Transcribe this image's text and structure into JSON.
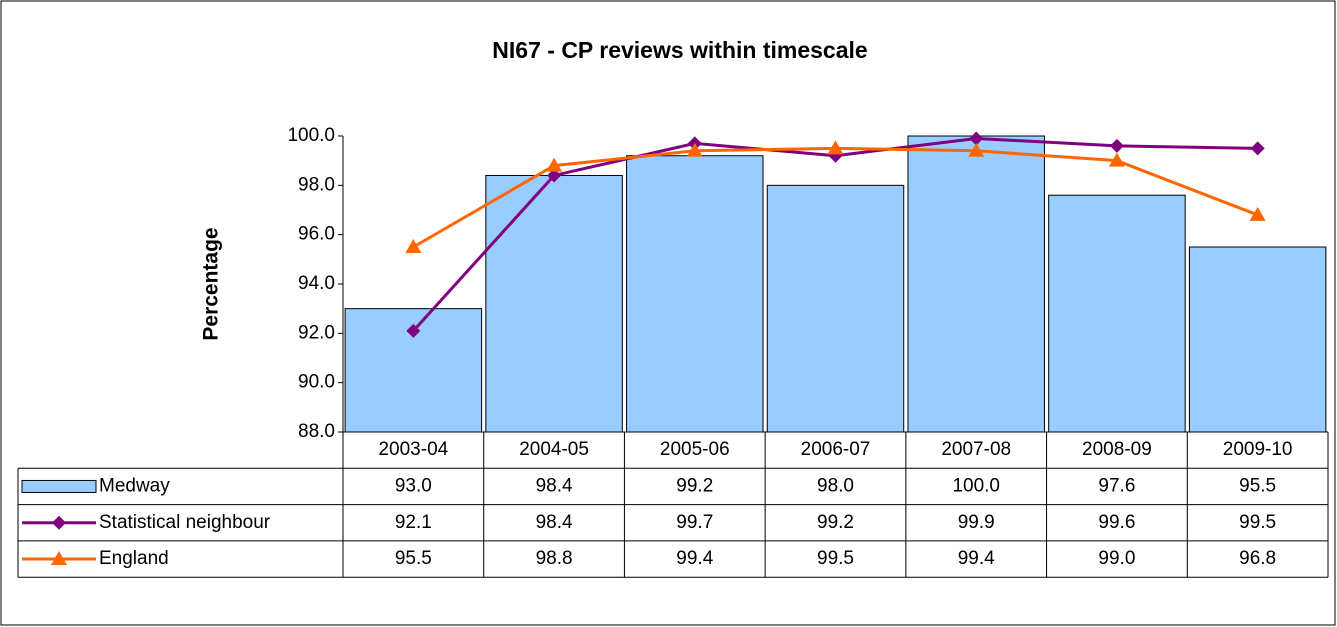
{
  "chart_data": {
    "type": "bar",
    "title": "NI67 - CP reviews within timescale",
    "y_label": "Percentage",
    "categories": [
      "2003-04",
      "2004-05",
      "2005-06",
      "2006-07",
      "2007-08",
      "2008-09",
      "2009-10"
    ],
    "series": [
      {
        "name": "Medway",
        "type": "bar",
        "color": "#99ccff",
        "values": [
          93.0,
          98.4,
          99.2,
          98.0,
          100.0,
          97.6,
          95.5
        ],
        "value_labels": [
          "93.0",
          "98.4",
          "99.2",
          "98.0",
          "100.0",
          "97.6",
          "95.5"
        ]
      },
      {
        "name": "Statistical neighbour",
        "type": "line",
        "marker": "diamond",
        "color": "#800080",
        "values": [
          92.1,
          98.4,
          99.7,
          99.2,
          99.9,
          99.6,
          99.5
        ],
        "value_labels": [
          "92.1",
          "98.4",
          "99.7",
          "99.2",
          "99.9",
          "99.6",
          "99.5"
        ]
      },
      {
        "name": "England",
        "type": "line",
        "marker": "triangle",
        "color": "#ff6600",
        "values": [
          95.5,
          98.8,
          99.4,
          99.5,
          99.4,
          99.0,
          96.8
        ],
        "value_labels": [
          "95.5",
          "98.8",
          "99.4",
          "99.5",
          "99.4",
          "99.0",
          "96.8"
        ]
      }
    ],
    "ylim": [
      88,
      100
    ],
    "yticks": [
      {
        "value": 88,
        "label": "88.0"
      },
      {
        "value": 90,
        "label": "90.0"
      },
      {
        "value": 92,
        "label": "92.0"
      },
      {
        "value": 94,
        "label": "94.0"
      },
      {
        "value": 96,
        "label": "96.0"
      },
      {
        "value": 98,
        "label": "98.0"
      },
      {
        "value": 100,
        "label": "100.0"
      }
    ],
    "grid": false
  }
}
